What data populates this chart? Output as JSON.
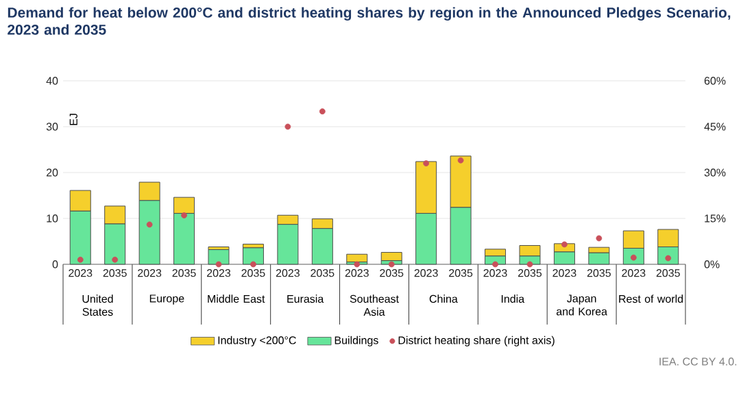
{
  "chart_data": {
    "type": "bar",
    "stacked": true,
    "title": "Demand for heat below 200°C and district heating shares by region in the Announced Pledges Scenario, 2023 and 2035",
    "ylabel": "EJ",
    "categories": [
      "2023",
      "2035",
      "2023",
      "2035",
      "2023",
      "2035",
      "2023",
      "2035",
      "2023",
      "2035",
      "2023",
      "2035",
      "2023",
      "2035",
      "2023",
      "2035",
      "2023",
      "2035"
    ],
    "series": [
      {
        "name": "Buildings",
        "type": "bar",
        "color": "#66e59a",
        "values": [
          11.6,
          8.8,
          13.9,
          11.1,
          3.2,
          3.6,
          8.7,
          7.8,
          0.5,
          0.8,
          11.1,
          12.4,
          1.8,
          1.8,
          2.7,
          2.5,
          3.5,
          3.8
        ]
      },
      {
        "name": "Industry <200°C",
        "type": "bar",
        "color": "#f5cf2c",
        "values": [
          4.5,
          3.9,
          4.0,
          3.5,
          0.6,
          0.8,
          2.0,
          2.1,
          1.7,
          1.8,
          11.3,
          11.2,
          1.5,
          2.3,
          1.8,
          1.2,
          3.8,
          3.8
        ]
      },
      {
        "name": "District heating share (right axis)",
        "type": "scatter",
        "axis": "y2",
        "color": "#c9505a",
        "values": [
          1.5,
          1.5,
          13,
          16,
          0,
          0,
          45,
          50,
          0,
          0,
          33,
          34,
          0,
          0,
          6.5,
          8.5,
          2.2,
          2
        ]
      }
    ],
    "ylim": [
      0,
      40
    ],
    "yticks": [
      0,
      10,
      20,
      30,
      40
    ],
    "y2lim": [
      0,
      60
    ],
    "y2ticks": [
      {
        "value": 0,
        "label": "0%"
      },
      {
        "value": 15,
        "label": "15%"
      },
      {
        "value": 30,
        "label": "30%"
      },
      {
        "value": 45,
        "label": "45%"
      },
      {
        "value": 60,
        "label": "60%"
      }
    ],
    "annotations": [
      "United States",
      "Europe",
      "Middle East",
      "Eurasia",
      "Southeast Asia",
      "China",
      "India",
      "Japan and Korea",
      "Rest of world",
      "IEA. CC BY 4.0."
    ],
    "grid": "y",
    "legend": "bottom",
    "marker": "circle"
  }
}
